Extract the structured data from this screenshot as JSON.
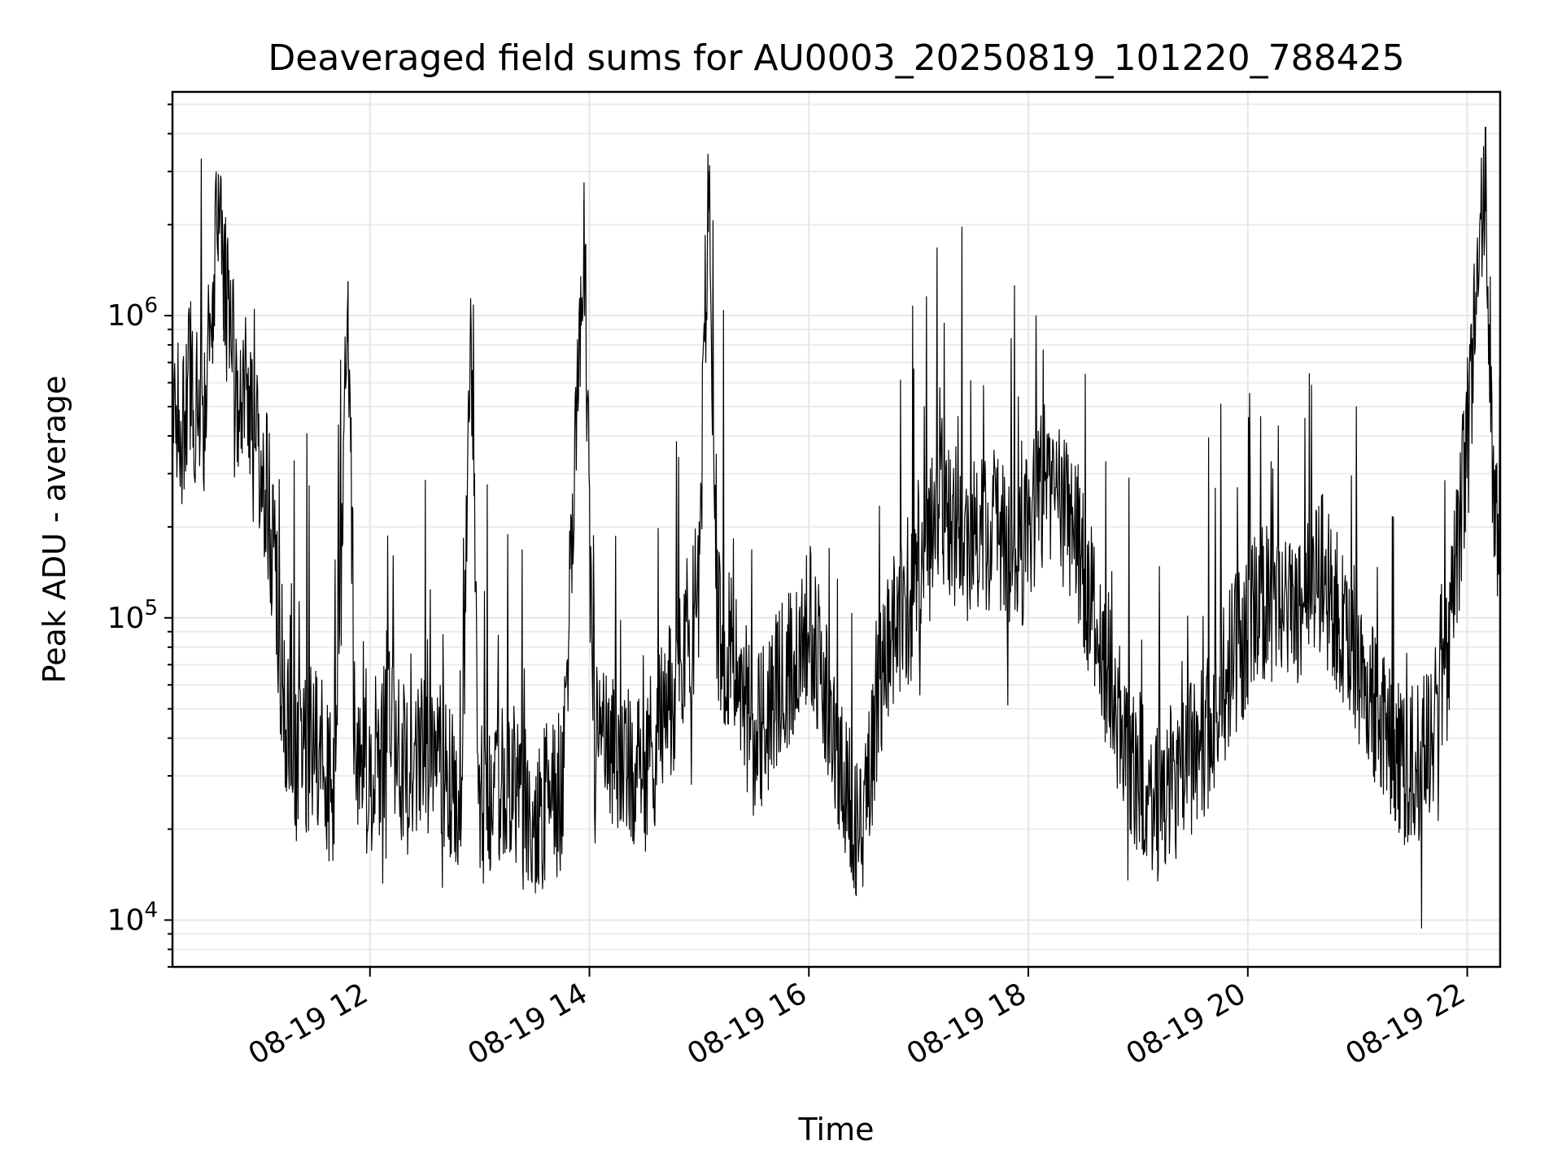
{
  "chart_data": {
    "type": "line",
    "title": "Deaveraged field sums for AU0003_20250819_101220_788425",
    "xlabel": "Time",
    "ylabel": "Peak ADU - average",
    "yscale": "log",
    "ylim": [
      7000,
      5500000
    ],
    "xlim": [
      "2025-08-19 10:12",
      "2025-08-19 22:18"
    ],
    "grid": true,
    "legend": "none",
    "line_color": "#000000",
    "x_ticks": [
      "08-19 12",
      "08-19 14",
      "08-19 16",
      "08-19 18",
      "08-19 20",
      "08-19 22"
    ],
    "y_ticks": [
      {
        "base": "10",
        "exp": "4",
        "value": 10000
      },
      {
        "base": "10",
        "exp": "5",
        "value": 100000
      },
      {
        "base": "10",
        "exp": "6",
        "value": 1000000
      }
    ],
    "series": [
      {
        "values": [
          [
            "2025-08-19 10:12",
            500000
          ],
          [
            "2025-08-19 10:15",
            550000
          ],
          [
            "2025-08-19 10:18",
            400000
          ],
          [
            "2025-08-19 10:22",
            650000
          ],
          [
            "2025-08-19 10:26",
            450000
          ],
          [
            "2025-08-19 10:30",
            500000
          ],
          [
            "2025-08-19 10:34",
            1100000
          ],
          [
            "2025-08-19 10:37",
            2400000
          ],
          [
            "2025-08-19 10:40",
            1300000
          ],
          [
            "2025-08-19 10:44",
            800000
          ],
          [
            "2025-08-19 10:48",
            550000
          ],
          [
            "2025-08-19 10:52",
            700000
          ],
          [
            "2025-08-19 10:56",
            450000
          ],
          [
            "2025-08-19 11:00",
            350000
          ],
          [
            "2025-08-19 11:04",
            250000
          ],
          [
            "2025-08-19 11:08",
            150000
          ],
          [
            "2025-08-19 11:10",
            80000
          ],
          [
            "2025-08-19 11:13",
            45000
          ],
          [
            "2025-08-19 11:20",
            30000
          ],
          [
            "2025-08-19 11:30",
            40000
          ],
          [
            "2025-08-19 11:40",
            26000
          ],
          [
            "2025-08-19 11:48",
            1300000
          ],
          [
            "2025-08-19 11:52",
            35000
          ],
          [
            "2025-08-19 12:00",
            28000
          ],
          [
            "2025-08-19 12:10",
            45000
          ],
          [
            "2025-08-19 12:20",
            30000
          ],
          [
            "2025-08-19 12:35",
            38000
          ],
          [
            "2025-08-19 12:50",
            25000
          ],
          [
            "2025-08-19 12:55",
            900000
          ],
          [
            "2025-08-19 13:00",
            24000
          ],
          [
            "2025-08-19 13:15",
            32000
          ],
          [
            "2025-08-19 13:30",
            22000
          ],
          [
            "2025-08-19 13:45",
            27000
          ],
          [
            "2025-08-19 13:55",
            800000
          ],
          [
            "2025-08-19 13:57",
            2400000
          ],
          [
            "2025-08-19 14:02",
            40000
          ],
          [
            "2025-08-19 14:15",
            35000
          ],
          [
            "2025-08-19 14:30",
            30000
          ],
          [
            "2025-08-19 14:45",
            55000
          ],
          [
            "2025-08-19 15:00",
            120000
          ],
          [
            "2025-08-19 15:05",
            3000000
          ],
          [
            "2025-08-19 15:10",
            90000
          ],
          [
            "2025-08-19 15:20",
            70000
          ],
          [
            "2025-08-19 15:30",
            40000
          ],
          [
            "2025-08-19 15:45",
            60000
          ],
          [
            "2025-08-19 16:00",
            100000
          ],
          [
            "2025-08-19 16:10",
            50000
          ],
          [
            "2025-08-19 16:20",
            25000
          ],
          [
            "2025-08-19 16:30",
            20000
          ],
          [
            "2025-08-19 16:40",
            70000
          ],
          [
            "2025-08-19 16:55",
            120000
          ],
          [
            "2025-08-19 17:10",
            250000
          ],
          [
            "2025-08-19 17:25",
            180000
          ],
          [
            "2025-08-19 17:40",
            200000
          ],
          [
            "2025-08-19 17:55",
            150000
          ],
          [
            "2025-08-19 18:10",
            300000
          ],
          [
            "2025-08-19 18:25",
            180000
          ],
          [
            "2025-08-19 18:40",
            80000
          ],
          [
            "2025-08-19 18:55",
            35000
          ],
          [
            "2025-08-19 19:10",
            25000
          ],
          [
            "2025-08-19 19:25",
            30000
          ],
          [
            "2025-08-19 19:40",
            45000
          ],
          [
            "2025-08-19 19:55",
            80000
          ],
          [
            "2025-08-19 20:10",
            120000
          ],
          [
            "2025-08-19 20:25",
            100000
          ],
          [
            "2025-08-19 20:40",
            140000
          ],
          [
            "2025-08-19 20:55",
            90000
          ],
          [
            "2025-08-19 21:10",
            50000
          ],
          [
            "2025-08-19 21:25",
            32000
          ],
          [
            "2025-08-19 21:40",
            35000
          ],
          [
            "2025-08-19 21:50",
            80000
          ],
          [
            "2025-08-19 22:00",
            400000
          ],
          [
            "2025-08-19 22:05",
            1000000
          ],
          [
            "2025-08-19 22:10",
            3500000
          ],
          [
            "2025-08-19 22:14",
            300000
          ],
          [
            "2025-08-19 22:18",
            120000
          ]
        ]
      }
    ]
  }
}
